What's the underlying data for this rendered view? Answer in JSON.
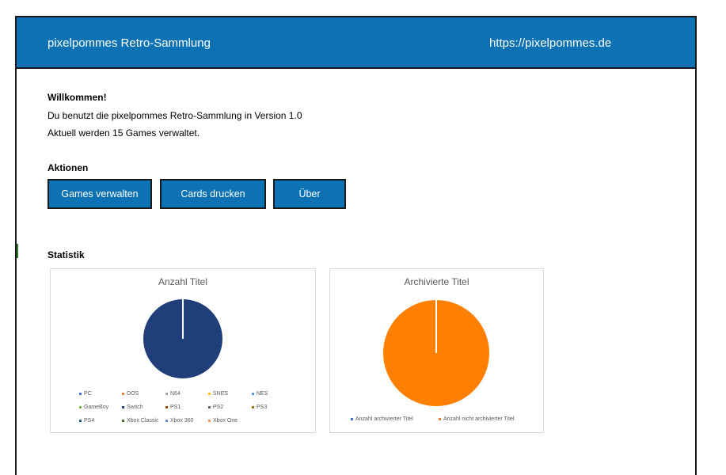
{
  "header": {
    "title": "pixelpommes Retro-Sammlung",
    "url": "https://pixelpommes.de"
  },
  "welcome": {
    "heading": "Willkommen!",
    "line1": "Du benutzt die pixelpommes Retro-Sammlung in Version 1.0",
    "line2": "Aktuell werden 15 Games verwaltet."
  },
  "actions": {
    "heading": "Aktionen",
    "buttons": [
      "Games verwalten",
      "Cards drucken",
      "Über"
    ]
  },
  "statistics": {
    "heading": "Statistik"
  },
  "colors": {
    "header_bg": "#0d72b3",
    "pie_blue": "#203f7a",
    "pie_orange": "#ff7f00"
  },
  "chart_data": [
    {
      "type": "pie",
      "title": "Anzahl Titel",
      "categories": [
        "PC",
        "DOS",
        "N64",
        "SNES",
        "NES",
        "GameBoy",
        "Switch",
        "PS1",
        "PS2",
        "PS3",
        "PS4",
        "Xbox Classic",
        "Xbox 360",
        "Xbox One"
      ],
      "colors": [
        "#4472c4",
        "#ed7d31",
        "#a5a5a5",
        "#ffc000",
        "#5b9bd5",
        "#70ad47",
        "#264478",
        "#9e480e",
        "#636363",
        "#997300",
        "#255e91",
        "#43682b",
        "#698ed0",
        "#f1975a"
      ],
      "values": [
        1,
        0,
        0,
        0,
        0,
        0,
        0,
        0,
        0,
        0,
        0,
        0,
        0,
        0
      ],
      "legend": "bottom"
    },
    {
      "type": "pie",
      "title": "Archivierte Titel",
      "categories": [
        "Anzahl archivierter Titel",
        "Anzahl nicht archivierter Titel"
      ],
      "colors": [
        "#4472c4",
        "#ed7d31"
      ],
      "values": [
        0,
        1
      ],
      "legend": "bottom"
    }
  ]
}
